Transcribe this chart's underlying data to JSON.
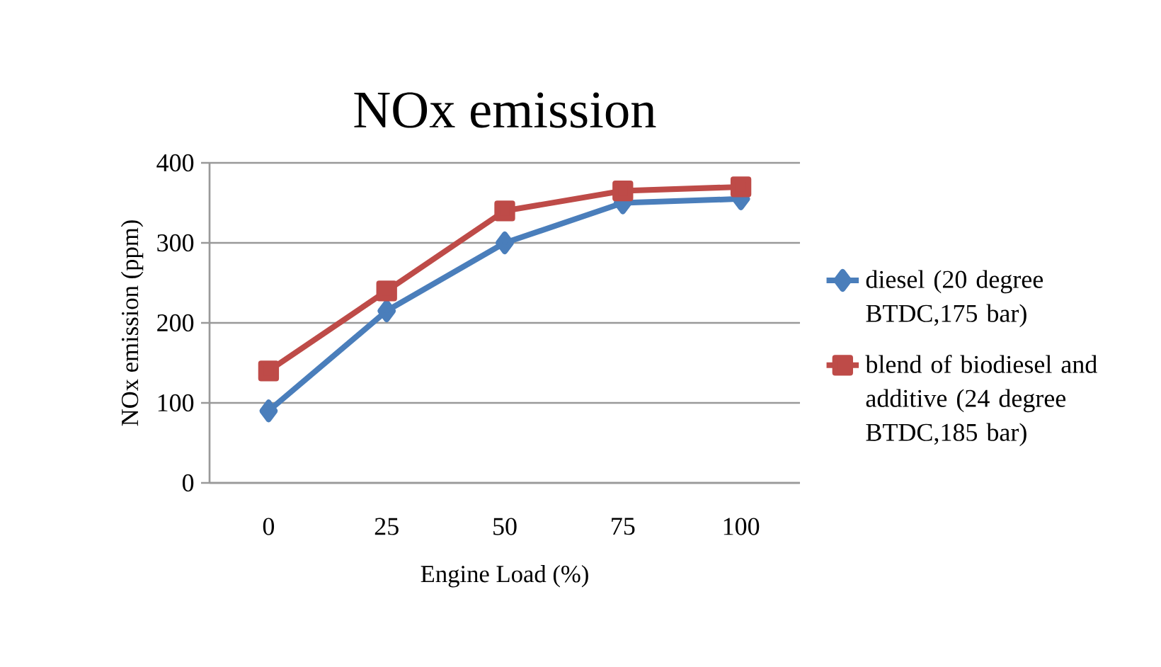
{
  "chart_data": {
    "type": "line",
    "title": "NOx emission",
    "xlabel": "Engine Load (%)",
    "ylabel": "NOx emission (ppm)",
    "categories": [
      "0",
      "25",
      "50",
      "75",
      "100"
    ],
    "series": [
      {
        "name": "diesel (20 degree BTDC,175 bar)",
        "color": "#4a7ebb",
        "marker": "diamond",
        "values": [
          90,
          215,
          300,
          350,
          355
        ]
      },
      {
        "name": "blend of biodiesel and additive (24 degree BTDC,185 bar)",
        "color": "#be4b48",
        "marker": "square",
        "values": [
          140,
          240,
          340,
          365,
          370
        ]
      }
    ],
    "ylim": [
      0,
      400
    ],
    "yticks": [
      0,
      100,
      200,
      300,
      400
    ],
    "grid": "y",
    "legend": "right",
    "line_style": "solid"
  }
}
